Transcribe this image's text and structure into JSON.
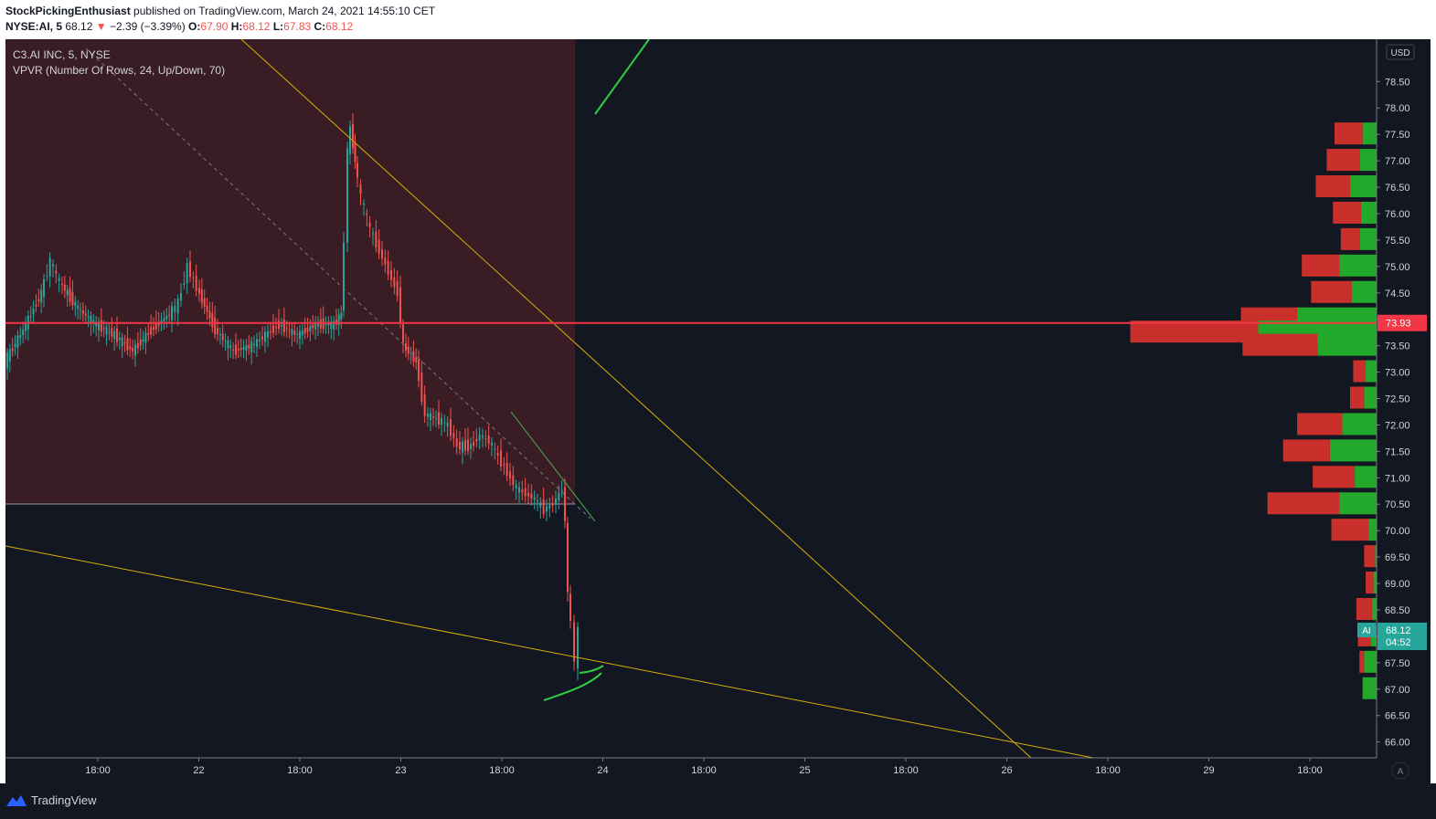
{
  "header": {
    "author": "StockPickingEnthusiast",
    "published": "published on TradingView.com, March 24, 2021 14:55:10 CET",
    "ticker": "NYSE:AI, 5",
    "last": "68.12",
    "arrow": "▼",
    "change": "−2.39 (−3.39%)",
    "o_label": "O:",
    "o_val": "67.90",
    "h_label": "H:",
    "h_val": "68.12",
    "l_label": "L:",
    "l_val": "67.83",
    "c_label": "C:",
    "c_val": "68.12"
  },
  "legend": {
    "symbol": "C3.AI INC, 5, NYSE",
    "indicator": "VPVR (Number Of Rows, 24, Up/Down, 70)"
  },
  "footer": {
    "brand": "TradingView",
    "logo_icon": "tradingview-logo-icon"
  },
  "chart_data": {
    "type": "candlestick",
    "currency": "USD",
    "ylim": [
      65.7,
      79.3
    ],
    "y_ticks": [
      "66.00",
      "66.50",
      "67.00",
      "67.50",
      "68.00",
      "68.50",
      "69.00",
      "69.50",
      "70.00",
      "70.50",
      "71.00",
      "71.50",
      "72.00",
      "72.50",
      "73.00",
      "73.50",
      "74.00",
      "74.50",
      "75.00",
      "75.50",
      "76.00",
      "76.50",
      "77.00",
      "77.50",
      "78.00",
      "78.50"
    ],
    "x_ticks": [
      "18:00",
      "22",
      "18:00",
      "23",
      "18:00",
      "24",
      "18:00",
      "25",
      "18:00",
      "26",
      "18:00",
      "29",
      "18:00"
    ],
    "price_line": {
      "value": 73.93,
      "label": "73.93",
      "color": "#f23645"
    },
    "last_price": {
      "symbol": "AI",
      "value": 68.12,
      "label": "68.12",
      "countdown": "04:52",
      "color": "#26a69a"
    },
    "scale_mode_label": "A",
    "price_path": [
      [
        0,
        73.2
      ],
      [
        2,
        73.8
      ],
      [
        4,
        74.5
      ],
      [
        5,
        75.1
      ],
      [
        6,
        74.7
      ],
      [
        8,
        74.2
      ],
      [
        10,
        73.9
      ],
      [
        12,
        73.7
      ],
      [
        14,
        73.4
      ],
      [
        16,
        73.8
      ],
      [
        18,
        74.1
      ],
      [
        19,
        74.3
      ],
      [
        20,
        75.0
      ],
      [
        21,
        74.6
      ],
      [
        23,
        73.8
      ],
      [
        25,
        73.4
      ],
      [
        27,
        73.5
      ],
      [
        30,
        73.9
      ],
      [
        32,
        73.7
      ],
      [
        34,
        73.9
      ],
      [
        36,
        73.9
      ],
      [
        36.8,
        74.1
      ],
      [
        37.2,
        75.5
      ],
      [
        37.5,
        77.2
      ],
      [
        37.8,
        77.6
      ],
      [
        38.3,
        77.0
      ],
      [
        39,
        76.3
      ],
      [
        40,
        75.7
      ],
      [
        41,
        75.3
      ],
      [
        42,
        74.9
      ],
      [
        43,
        74.5
      ],
      [
        43.6,
        73.5
      ],
      [
        45,
        73.2
      ],
      [
        46,
        72.2
      ],
      [
        47.5,
        72.1
      ],
      [
        48.5,
        72.0
      ],
      [
        49.5,
        71.6
      ],
      [
        51,
        71.6
      ],
      [
        52,
        71.8
      ],
      [
        53,
        71.7
      ],
      [
        54,
        71.4
      ],
      [
        55,
        71.1
      ],
      [
        56,
        70.8
      ],
      [
        57,
        70.7
      ],
      [
        58,
        70.6
      ],
      [
        59,
        70.4
      ],
      [
        60,
        70.5
      ],
      [
        61,
        70.8
      ],
      [
        61.3,
        70.2
      ],
      [
        61.6,
        68.8
      ],
      [
        62,
        68.3
      ],
      [
        62.4,
        67.5
      ],
      [
        62.8,
        68.1
      ]
    ],
    "volume_profile": {
      "rows": [
        {
          "price": 77.5,
          "up": 0.09,
          "down": 0.18
        },
        {
          "price": 77.0,
          "up": 0.11,
          "down": 0.21
        },
        {
          "price": 76.5,
          "up": 0.17,
          "down": 0.22
        },
        {
          "price": 76.0,
          "up": 0.1,
          "down": 0.18
        },
        {
          "price": 75.5,
          "up": 0.11,
          "down": 0.12
        },
        {
          "price": 75.0,
          "up": 0.24,
          "down": 0.24
        },
        {
          "price": 74.5,
          "up": 0.16,
          "down": 0.26
        },
        {
          "price": 74.0,
          "up": 0.51,
          "down": 0.36
        },
        {
          "price": 73.75,
          "up": 0.76,
          "down": 0.82
        },
        {
          "price": 73.5,
          "up": 0.38,
          "down": 0.48
        },
        {
          "price": 73.0,
          "up": 0.07,
          "down": 0.08
        },
        {
          "price": 72.5,
          "up": 0.08,
          "down": 0.09
        },
        {
          "price": 72.0,
          "up": 0.22,
          "down": 0.29
        },
        {
          "price": 71.5,
          "up": 0.3,
          "down": 0.3
        },
        {
          "price": 71.0,
          "up": 0.14,
          "down": 0.27
        },
        {
          "price": 70.5,
          "up": 0.24,
          "down": 0.46
        },
        {
          "price": 70.0,
          "up": 0.05,
          "down": 0.24
        },
        {
          "price": 69.5,
          "up": 0.01,
          "down": 0.07
        },
        {
          "price": 69.0,
          "up": 0.02,
          "down": 0.05
        },
        {
          "price": 68.5,
          "up": 0.03,
          "down": 0.1
        },
        {
          "price": 68.0,
          "up": 0.04,
          "down": 0.08
        },
        {
          "price": 67.5,
          "up": 0.08,
          "down": 0.03
        },
        {
          "price": 67.0,
          "up": 0.09,
          "down": 0.0
        }
      ]
    }
  }
}
